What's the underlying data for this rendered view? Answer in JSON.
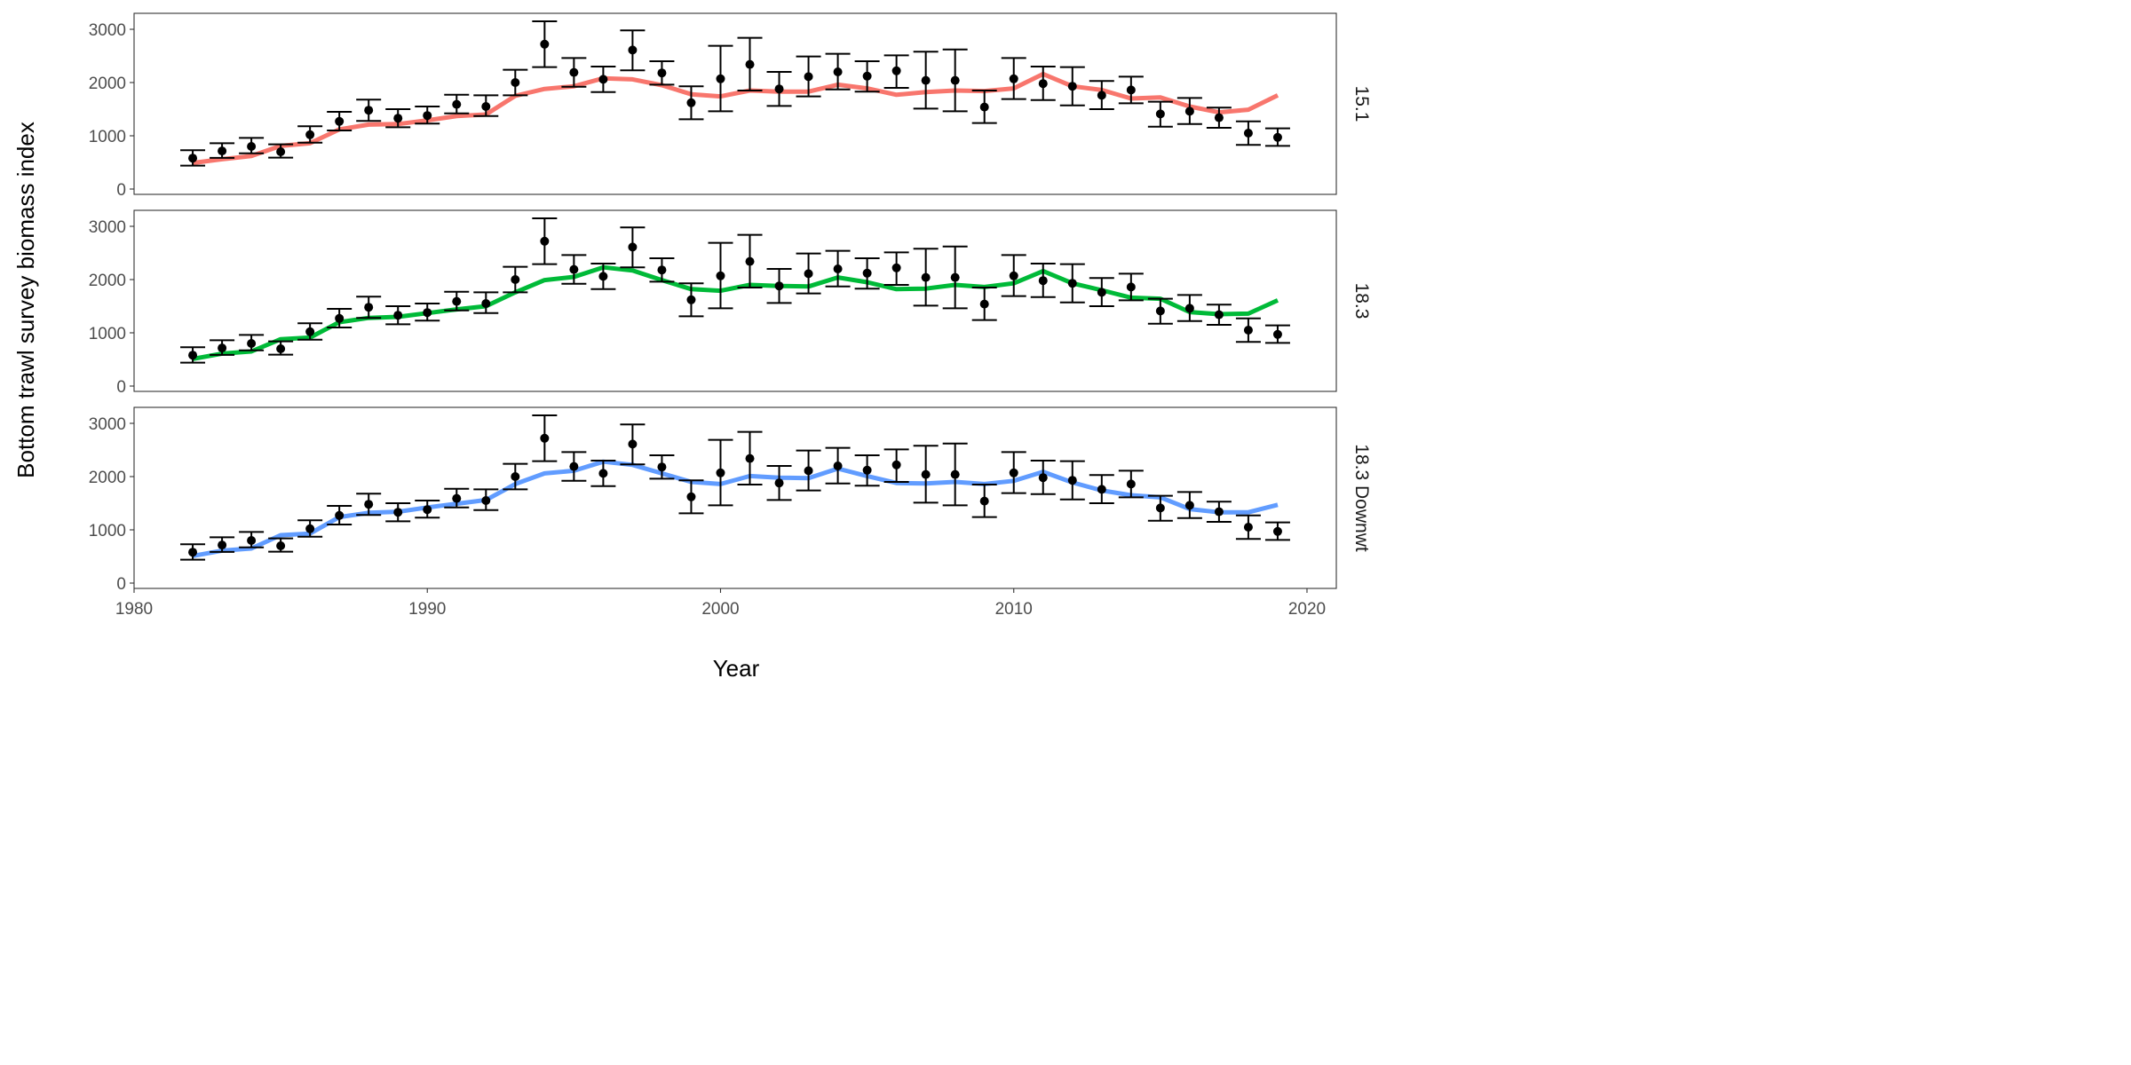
{
  "chart_data": {
    "type": "line",
    "layout": "faceted",
    "xlabel": "Year",
    "ylabel": "Bottom trawl survey biomass index",
    "xlim": [
      1980,
      2021
    ],
    "ylim": [
      -100,
      3300
    ],
    "xticks": [
      1980,
      1990,
      2000,
      2010,
      2020
    ],
    "yticks": [
      0,
      1000,
      2000,
      3000
    ],
    "grid": false,
    "legend": "none",
    "observed": {
      "x": [
        1982,
        1983,
        1984,
        1985,
        1986,
        1987,
        1988,
        1989,
        1990,
        1991,
        1992,
        1993,
        1994,
        1995,
        1996,
        1997,
        1998,
        1999,
        2000,
        2001,
        2002,
        2003,
        2004,
        2005,
        2006,
        2007,
        2008,
        2009,
        2010,
        2011,
        2012,
        2013,
        2014,
        2015,
        2016,
        2017,
        2018,
        2019
      ],
      "y": [
        580,
        715,
        800,
        700,
        1020,
        1270,
        1480,
        1330,
        1380,
        1590,
        1550,
        2000,
        2720,
        2190,
        2060,
        2610,
        2180,
        1620,
        2070,
        2340,
        1880,
        2110,
        2200,
        2120,
        2220,
        2040,
        2040,
        1540,
        2070,
        1980,
        1930,
        1760,
        1860,
        1410,
        1460,
        1340,
        1050,
        970
      ],
      "lower": [
        440,
        585,
        670,
        590,
        870,
        1100,
        1280,
        1160,
        1230,
        1420,
        1370,
        1760,
        2290,
        1920,
        1820,
        2230,
        1960,
        1310,
        1460,
        1850,
        1560,
        1740,
        1870,
        1830,
        1900,
        1510,
        1460,
        1240,
        1690,
        1670,
        1570,
        1500,
        1610,
        1170,
        1220,
        1150,
        830,
        810
      ],
      "upper": [
        730,
        860,
        960,
        840,
        1180,
        1450,
        1680,
        1500,
        1550,
        1770,
        1760,
        2240,
        3150,
        2460,
        2300,
        2980,
        2400,
        1930,
        2690,
        2840,
        2200,
        2490,
        2540,
        2400,
        2510,
        2580,
        2620,
        1850,
        2460,
        2300,
        2290,
        2030,
        2110,
        1640,
        1710,
        1530,
        1270,
        1140
      ]
    },
    "panels": [
      {
        "strip_label": "15.1",
        "color": "#F8766D",
        "values": [
          490,
          560,
          620,
          810,
          860,
          1120,
          1210,
          1220,
          1290,
          1370,
          1400,
          1750,
          1880,
          1930,
          2080,
          2060,
          1950,
          1780,
          1740,
          1850,
          1830,
          1830,
          1960,
          1890,
          1770,
          1820,
          1850,
          1840,
          1890,
          2160,
          1930,
          1860,
          1700,
          1720,
          1550,
          1440,
          1490,
          1760
        ]
      },
      {
        "strip_label": "18.3",
        "color": "#00BA38",
        "values": [
          510,
          610,
          650,
          880,
          910,
          1200,
          1280,
          1300,
          1370,
          1440,
          1500,
          1760,
          1990,
          2050,
          2230,
          2170,
          1990,
          1820,
          1790,
          1900,
          1880,
          1870,
          2040,
          1950,
          1820,
          1830,
          1900,
          1860,
          1930,
          2160,
          1930,
          1800,
          1660,
          1640,
          1390,
          1350,
          1360,
          1610
        ]
      },
      {
        "strip_label": "18.3 Downwt",
        "color": "#619CFF",
        "values": [
          510,
          610,
          650,
          900,
          930,
          1240,
          1320,
          1340,
          1420,
          1490,
          1560,
          1860,
          2060,
          2110,
          2280,
          2220,
          2060,
          1900,
          1860,
          2010,
          1980,
          1970,
          2150,
          2010,
          1880,
          1870,
          1900,
          1860,
          1920,
          2090,
          1890,
          1740,
          1650,
          1610,
          1390,
          1330,
          1330,
          1470
        ]
      }
    ]
  }
}
